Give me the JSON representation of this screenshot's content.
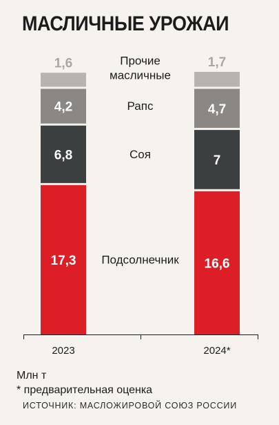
{
  "chart_data": {
    "type": "bar",
    "stacked": true,
    "title": "МАСЛИЧНЫЕ УРОЖАИ",
    "categories": [
      "2023",
      "2024*"
    ],
    "series": [
      {
        "name": "Подсолнечник",
        "values": [
          17.3,
          16.6
        ],
        "labels": [
          "17,3",
          "16,6"
        ],
        "color": "#dc1f26"
      },
      {
        "name": "Соя",
        "values": [
          6.8,
          7
        ],
        "labels": [
          "6,8",
          "7"
        ],
        "color": "#3c3f40"
      },
      {
        "name": "Рапс",
        "values": [
          4.2,
          4.7
        ],
        "labels": [
          "4,2",
          "4,7"
        ],
        "color": "#8a8784"
      },
      {
        "name": "Прочие масличные",
        "name_lines": [
          "Прочие",
          "масличные"
        ],
        "values": [
          1.6,
          1.7
        ],
        "labels": [
          "1,6",
          "1,7"
        ],
        "color": "#b7b3ae"
      }
    ],
    "unit_note": "Млн т",
    "footnote": "* предварительная оценка",
    "source": "ИСТОЧНИК: МАСЛОЖИРОВОЙ СОЮЗ РОССИИ"
  }
}
